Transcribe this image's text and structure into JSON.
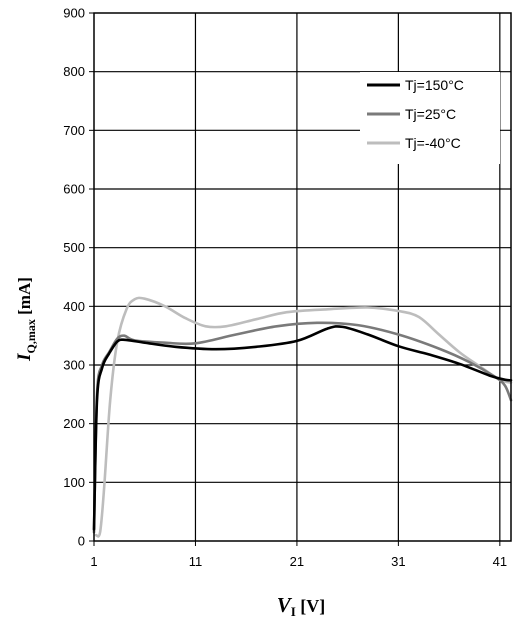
{
  "chart_data": {
    "type": "line",
    "title": "",
    "xlabel": {
      "main": "V",
      "sub": "I",
      "unit": " [V]"
    },
    "ylabel": {
      "main": "I",
      "sub": "Q,max",
      "unit": " [mA]"
    },
    "xlim": [
      1,
      42.1
    ],
    "ylim": [
      0,
      900
    ],
    "xticks": [
      1,
      11,
      21,
      31,
      41
    ],
    "yticks": [
      0,
      100,
      200,
      300,
      400,
      500,
      600,
      700,
      800,
      900
    ],
    "grid": true,
    "legend_position": "top-right",
    "series": [
      {
        "name": "Tj=150°C",
        "color": "#000000",
        "points": [
          [
            1,
            20
          ],
          [
            1.3,
            240
          ],
          [
            1.8,
            295
          ],
          [
            2.5,
            320
          ],
          [
            3.3,
            340
          ],
          [
            4,
            343
          ],
          [
            6,
            338
          ],
          [
            9,
            331
          ],
          [
            13,
            327
          ],
          [
            17,
            331
          ],
          [
            21,
            341
          ],
          [
            24,
            362
          ],
          [
            25.5,
            365
          ],
          [
            28,
            352
          ],
          [
            31,
            332
          ],
          [
            34,
            318
          ],
          [
            37,
            302
          ],
          [
            40,
            282
          ],
          [
            41.5,
            275
          ],
          [
            42.1,
            274
          ]
        ]
      },
      {
        "name": "Tj=25°C",
        "color": "#7a7a7a",
        "points": [
          [
            1,
            15
          ],
          [
            1.3,
            250
          ],
          [
            1.8,
            300
          ],
          [
            2.5,
            322
          ],
          [
            3.3,
            345
          ],
          [
            4,
            350
          ],
          [
            5,
            342
          ],
          [
            8,
            338
          ],
          [
            11,
            337
          ],
          [
            15,
            352
          ],
          [
            19,
            366
          ],
          [
            23,
            372
          ],
          [
            27,
            368
          ],
          [
            31,
            352
          ],
          [
            35,
            328
          ],
          [
            38,
            305
          ],
          [
            40.5,
            280
          ],
          [
            41.5,
            265
          ],
          [
            42.1,
            240
          ]
        ]
      },
      {
        "name": "Tj=-40°C",
        "color": "#bdbdbd",
        "points": [
          [
            1.2,
            10
          ],
          [
            1.6,
            15
          ],
          [
            2,
            90
          ],
          [
            2.6,
            240
          ],
          [
            3.3,
            340
          ],
          [
            4.2,
            395
          ],
          [
            5,
            412
          ],
          [
            6,
            413
          ],
          [
            8,
            400
          ],
          [
            10,
            380
          ],
          [
            12,
            366
          ],
          [
            14,
            366
          ],
          [
            17,
            378
          ],
          [
            20,
            390
          ],
          [
            24,
            395
          ],
          [
            28,
            398
          ],
          [
            31,
            392
          ],
          [
            33,
            382
          ],
          [
            35,
            352
          ],
          [
            37,
            322
          ],
          [
            39,
            298
          ],
          [
            41,
            275
          ],
          [
            42.1,
            270
          ]
        ]
      }
    ]
  }
}
